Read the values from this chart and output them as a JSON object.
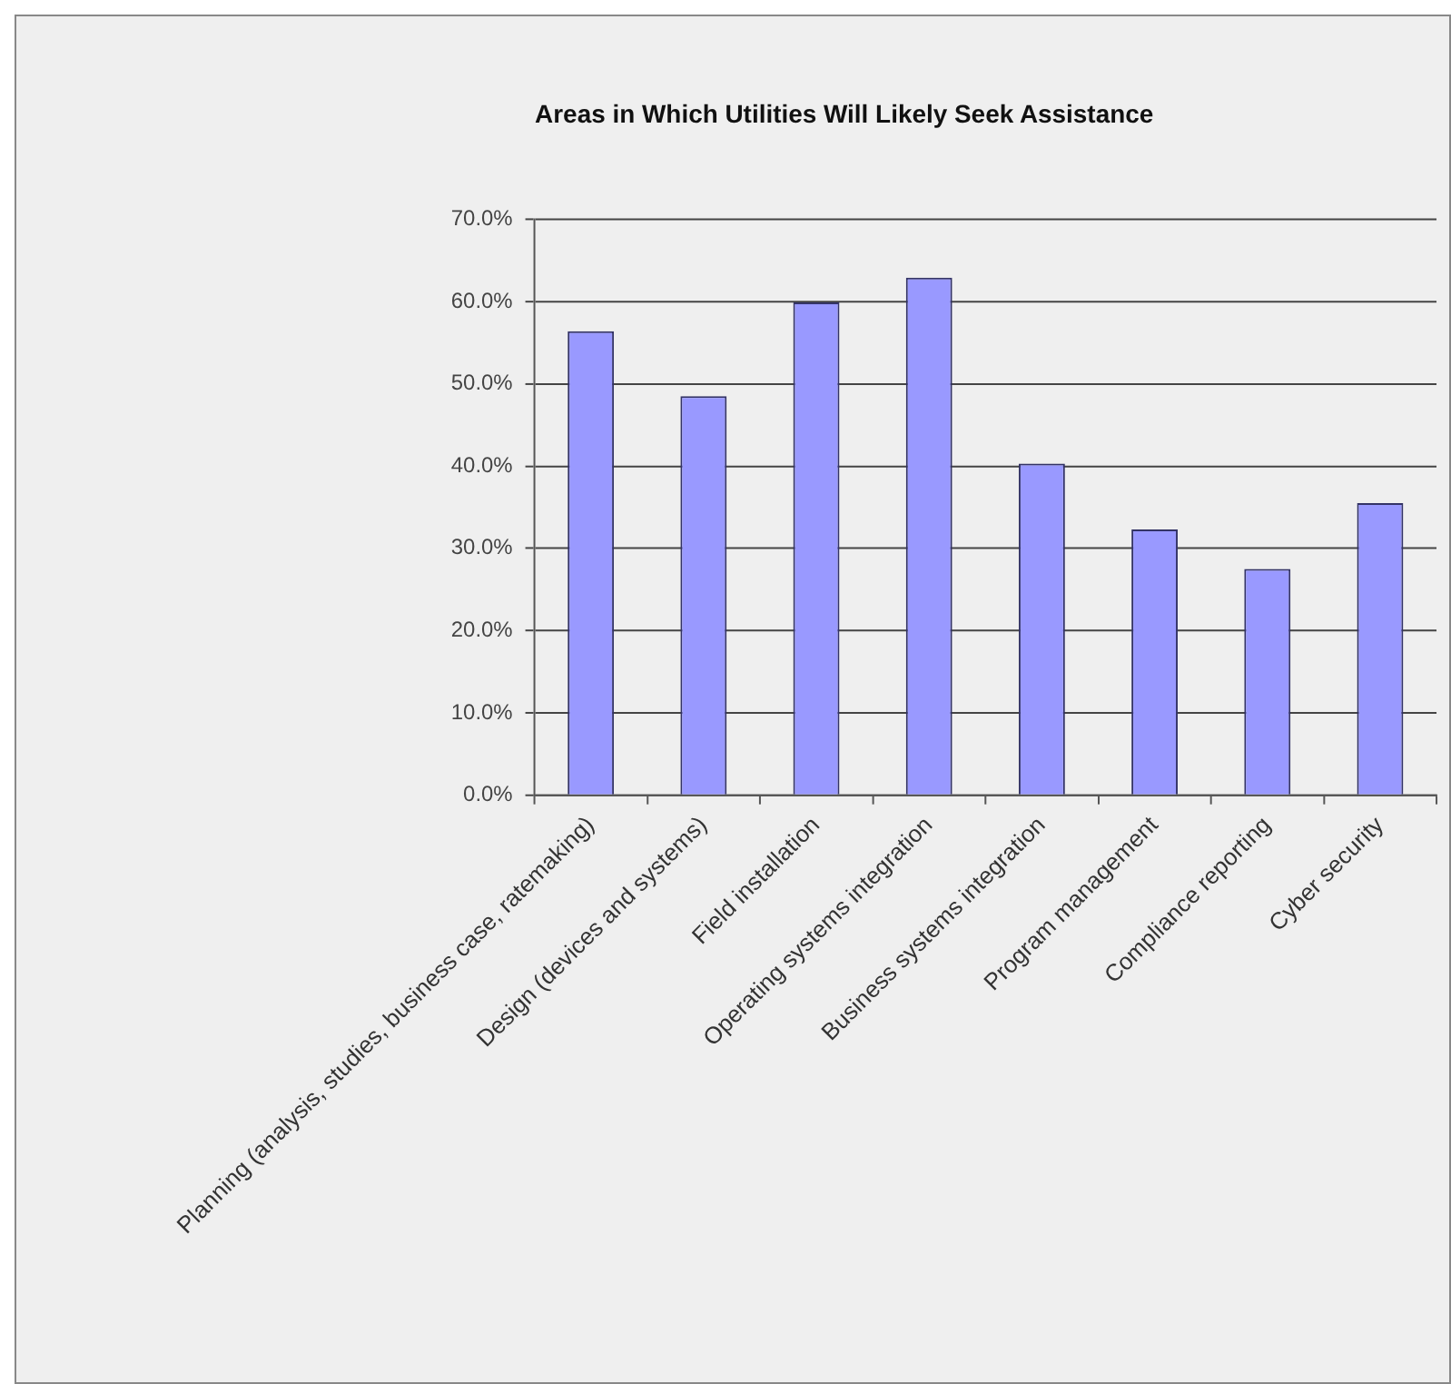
{
  "chart_data": {
    "type": "bar",
    "title": "Areas in Which Utilities Will Likely Seek Assistance",
    "categories": [
      "Planning (analysis, studies, business case, ratemaking)",
      "Design (devices and systems)",
      "Field installation",
      "Operating systems integration",
      "Business systems integration",
      "Program management",
      "Compliance reporting",
      "Cyber security"
    ],
    "values": [
      56.4,
      48.5,
      59.9,
      62.9,
      40.3,
      32.3,
      27.5,
      35.5
    ],
    "color": "#9999ff",
    "ylim": [
      0,
      70
    ],
    "yticks": [
      {
        "value": 0,
        "label": "0.0%"
      },
      {
        "value": 10,
        "label": "10.0%"
      },
      {
        "value": 20,
        "label": "20.0%"
      },
      {
        "value": 30,
        "label": "30.0%"
      },
      {
        "value": 40,
        "label": "40.0%"
      },
      {
        "value": 50,
        "label": "50.0%"
      },
      {
        "value": 60,
        "label": "60.0%"
      },
      {
        "value": 70,
        "label": "70.0%"
      }
    ],
    "grid": "y"
  }
}
